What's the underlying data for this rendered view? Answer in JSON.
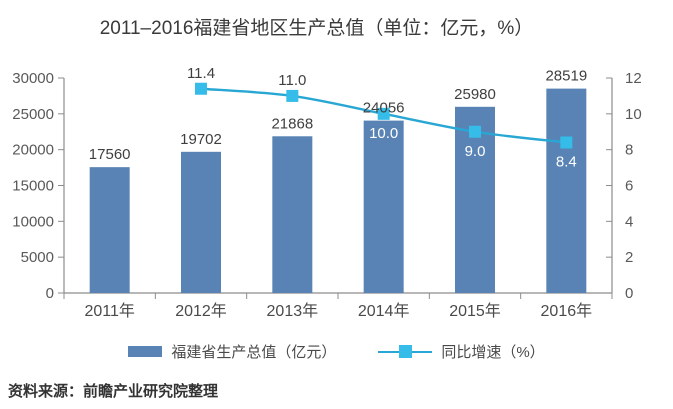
{
  "title": "2011–2016福建省地区生产总值（单位：亿元，%）",
  "source_note": "资料来源：前瞻产业研究院整理",
  "legend": {
    "gdp_label": "福建省生产总值（亿元）",
    "growth_label": "同比增速（%）"
  },
  "colors": {
    "bar": "#5883B4",
    "line": "#29A7D4",
    "marker": "#35BCE8",
    "axis": "#8C8C8C",
    "label_dark": "#3F3F3F",
    "label_white": "#FFFFFF"
  },
  "chart_data": {
    "type": "bar",
    "title": "2011–2016福建省地区生产总值（单位：亿元，%）",
    "categories": [
      "2011年",
      "2012年",
      "2013年",
      "2014年",
      "2015年",
      "2016年"
    ],
    "series": [
      {
        "name": "福建省生产总值（亿元）",
        "type": "bar",
        "axis": "left",
        "values": [
          17560,
          19702,
          21868,
          24056,
          25980,
          28519
        ],
        "labels": [
          "17560",
          "19702",
          "21868",
          "24056",
          "25980",
          "28519"
        ]
      },
      {
        "name": "同比增速（%）",
        "type": "line",
        "axis": "right",
        "values": [
          null,
          11.4,
          11.0,
          10.0,
          9.0,
          8.4
        ],
        "labels": [
          "",
          "11.4",
          "11.0",
          "10.0",
          "9.0",
          "8.4"
        ],
        "label_pos": [
          "",
          "above",
          "above",
          "below",
          "below",
          "below"
        ]
      }
    ],
    "left_axis": {
      "min": 0,
      "max": 30000,
      "step": 5000,
      "ticks": [
        "0",
        "5000",
        "10000",
        "15000",
        "20000",
        "25000",
        "30000"
      ]
    },
    "right_axis": {
      "min": 0,
      "max": 12,
      "step": 2,
      "ticks": [
        "0",
        "2",
        "4",
        "6",
        "8",
        "10",
        "12"
      ]
    },
    "grid": false,
    "legend_position": "bottom"
  }
}
